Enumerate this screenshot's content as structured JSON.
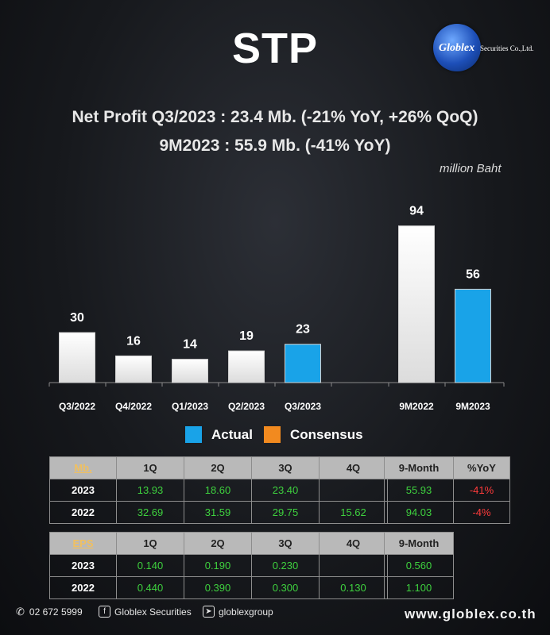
{
  "header": {
    "title": "STP",
    "brand_name": "Globlex",
    "brand_sub": "Securities Co.,Ltd.",
    "headline_1": "Net Profit  Q3/2023 : 23.4 Mb. (-21% YoY, +26% QoQ)",
    "headline_2": "9M2023 : 55.9 Mb. (-41% YoY)",
    "unit": "million Baht"
  },
  "chart_data": {
    "type": "bar",
    "title": "STP Net Profit",
    "ylabel": "million Baht",
    "ylim": [
      0,
      100
    ],
    "categories": [
      "Q3/2022",
      "Q4/2022",
      "Q1/2023",
      "Q2/2023",
      "Q3/2023",
      "9M2022",
      "9M2023"
    ],
    "values": [
      30,
      16,
      14,
      19,
      23,
      94,
      56
    ],
    "colors": [
      "#f2f2f2",
      "#f2f2f2",
      "#f2f2f2",
      "#f2f2f2",
      "#19a3e8",
      "#f2f2f2",
      "#19a3e8"
    ],
    "legend": [
      {
        "label": "Actual",
        "color": "#19a3e8"
      },
      {
        "label": "Consensus",
        "color": "#f28a1f"
      }
    ]
  },
  "np_table": {
    "headers": [
      "Mb.",
      "1Q",
      "2Q",
      "3Q",
      "4Q"
    ],
    "rows": [
      {
        "year": "2023",
        "q1": "13.93",
        "q2": "18.60",
        "q3": "23.40",
        "q4": ""
      },
      {
        "year": "2022",
        "q1": "32.69",
        "q2": "31.59",
        "q3": "29.75",
        "q4": "15.62"
      }
    ]
  },
  "np_9m": {
    "headers": [
      "9-Month",
      "%YoY"
    ],
    "rows": [
      {
        "value": "55.93",
        "yoy": "-41%"
      },
      {
        "value": "94.03",
        "yoy": "-4%"
      }
    ]
  },
  "eps_table": {
    "headers": [
      "EPS",
      "1Q",
      "2Q",
      "3Q",
      "4Q"
    ],
    "rows": [
      {
        "year": "2023",
        "q1": "0.140",
        "q2": "0.190",
        "q3": "0.230",
        "q4": ""
      },
      {
        "year": "2022",
        "q1": "0.440",
        "q2": "0.390",
        "q3": "0.300",
        "q4": "0.130"
      }
    ]
  },
  "eps_9m": {
    "header": "9-Month",
    "rows": [
      "0.560",
      "1.100"
    ]
  },
  "footer": {
    "phone": "02 672 5999",
    "facebook": "Globlex Securities",
    "telegram": "globlexgroup",
    "website": "www.globlex.co.th"
  }
}
